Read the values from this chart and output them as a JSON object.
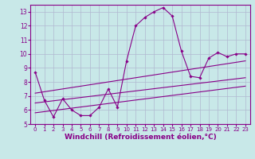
{
  "background_color": "#c8e8e8",
  "grid_color": "#b0b8d0",
  "line_color": "#880088",
  "marker_color": "#880088",
  "xlabel": "Windchill (Refroidissement éolien,°C)",
  "xlabel_fontsize": 6.5,
  "xlim": [
    -0.5,
    23.5
  ],
  "ylim": [
    5,
    13.5
  ],
  "yticks": [
    5,
    6,
    7,
    8,
    9,
    10,
    11,
    12,
    13
  ],
  "xticks": [
    0,
    1,
    2,
    3,
    4,
    5,
    6,
    7,
    8,
    9,
    10,
    11,
    12,
    13,
    14,
    15,
    16,
    17,
    18,
    19,
    20,
    21,
    22,
    23
  ],
  "series": [
    {
      "x": [
        0,
        1,
        2,
        3,
        4,
        5,
        6,
        7,
        8,
        9,
        10,
        11,
        12,
        13,
        14,
        15,
        16,
        17,
        18,
        19,
        20,
        21,
        22,
        23
      ],
      "y": [
        8.7,
        6.7,
        5.5,
        6.8,
        6.0,
        5.6,
        5.6,
        6.2,
        7.5,
        6.2,
        9.5,
        12.0,
        12.6,
        13.0,
        13.3,
        12.7,
        10.2,
        8.4,
        8.3,
        9.7,
        10.1,
        9.8,
        10.0,
        10.0
      ],
      "has_marker": true
    },
    {
      "x": [
        0,
        23
      ],
      "y": [
        7.2,
        9.5
      ],
      "has_marker": false
    },
    {
      "x": [
        0,
        23
      ],
      "y": [
        6.5,
        8.3
      ],
      "has_marker": false
    },
    {
      "x": [
        0,
        23
      ],
      "y": [
        5.8,
        7.7
      ],
      "has_marker": false
    }
  ]
}
